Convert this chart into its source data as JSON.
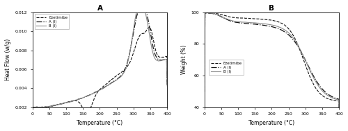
{
  "title_A": "A",
  "title_B": "B",
  "xlabel": "Temperature (°C)",
  "ylabel_A": "Heat Flow (w/g)",
  "ylabel_B": "Weight (%)",
  "xlim_A": [
    0,
    400
  ],
  "ylim_A": [
    0.002,
    0.012
  ],
  "xlim_B": [
    0,
    400
  ],
  "ylim_B": [
    40,
    100
  ],
  "legend_A": [
    "Ezetimibe",
    "A (I)",
    "B (I)"
  ],
  "legend_B": [
    "Ezetimibe",
    "A (I)",
    "B (I)"
  ],
  "line_styles": [
    "--",
    "-.",
    "-"
  ],
  "line_color_dark": "#111111",
  "line_color_gray": "#888888",
  "background": "#ffffff",
  "yticks_A": [
    0.002,
    0.004,
    0.006,
    0.008,
    0.01,
    0.012
  ],
  "yticks_B": [
    40,
    60,
    80,
    100
  ],
  "xticks": [
    0,
    50,
    100,
    150,
    200,
    250,
    300,
    350,
    400
  ]
}
